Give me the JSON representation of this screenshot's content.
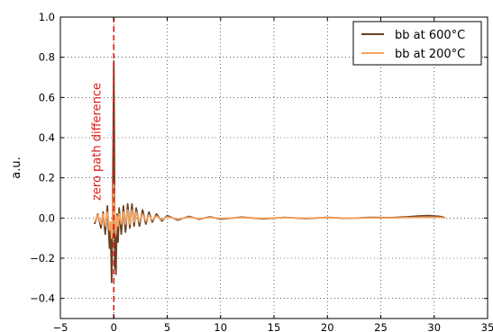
{
  "chart_data": {
    "type": "line",
    "title": "",
    "xlabel": "",
    "ylabel": "a.u.",
    "xlim": [
      -5,
      35
    ],
    "ylim": [
      -0.5,
      1.0
    ],
    "xticks": [
      -5,
      0,
      5,
      10,
      15,
      20,
      25,
      30,
      35
    ],
    "yticks": [
      -0.4,
      -0.2,
      0.0,
      0.2,
      0.4,
      0.6,
      0.8,
      1.0
    ],
    "xtick_labels": [
      "−5",
      "0",
      "5",
      "10",
      "15",
      "20",
      "25",
      "30",
      "35"
    ],
    "ytick_labels": [
      "−0.4",
      "−0.2",
      "0.0",
      "0.2",
      "0.4",
      "0.6",
      "0.8",
      "1.0"
    ],
    "grid": true,
    "legend_position": "top-right",
    "series": [
      {
        "name": "bb at 600°C",
        "color": "#6b4123",
        "x": [
          -1.8,
          -1.5,
          -1.2,
          -1.0,
          -0.8,
          -0.6,
          -0.4,
          -0.3,
          -0.2,
          -0.1,
          0.0,
          0.05,
          0.1,
          0.15,
          0.2,
          0.3,
          0.4,
          0.5,
          0.7,
          0.9,
          1.1,
          1.3,
          1.5,
          1.7,
          1.9,
          2.1,
          2.4,
          2.7,
          3.0,
          3.3,
          3.6,
          4.0,
          4.5,
          5.0,
          6.0,
          7.0,
          8.0,
          9.0,
          10.0,
          12.0,
          14.0,
          16.0,
          18.0,
          20.0,
          22.0,
          24.0,
          26.0,
          27.5,
          28.5,
          29.5,
          30.5,
          31.0
        ],
        "y": [
          -0.03,
          0.02,
          -0.05,
          0.03,
          -0.08,
          0.06,
          -0.15,
          -0.05,
          -0.32,
          0.05,
          0.78,
          0.4,
          -0.25,
          -0.1,
          -0.28,
          0.02,
          -0.12,
          0.05,
          -0.08,
          0.06,
          -0.07,
          0.07,
          -0.05,
          0.07,
          -0.04,
          0.05,
          -0.04,
          0.04,
          -0.03,
          0.03,
          -0.02,
          0.02,
          -0.015,
          0.012,
          -0.01,
          0.008,
          -0.006,
          0.006,
          -0.005,
          0.004,
          -0.004,
          0.003,
          -0.003,
          0.003,
          -0.002,
          0.003,
          0.002,
          0.006,
          0.01,
          0.012,
          0.008,
          0.002
        ]
      },
      {
        "name": "bb at 200°C",
        "color": "#f5a25d",
        "x": [
          -1.8,
          -1.5,
          -1.2,
          -1.0,
          -0.8,
          -0.6,
          -0.4,
          -0.3,
          -0.2,
          -0.1,
          0.0,
          0.05,
          0.1,
          0.15,
          0.2,
          0.3,
          0.4,
          0.5,
          0.7,
          0.9,
          1.1,
          1.3,
          1.5,
          1.7,
          1.9,
          2.1,
          2.4,
          2.7,
          3.0,
          3.3,
          3.6,
          4.0,
          4.5,
          5.0,
          6.0,
          7.0,
          8.0,
          9.0,
          10.0,
          12.0,
          14.0,
          16.0,
          18.0,
          20.0,
          22.0,
          24.0,
          26.0,
          27.5,
          28.5,
          29.5,
          30.5,
          31.0
        ],
        "y": [
          -0.02,
          0.015,
          -0.03,
          0.02,
          -0.04,
          0.03,
          -0.06,
          -0.02,
          -0.1,
          0.03,
          0.18,
          0.1,
          -0.06,
          -0.02,
          -0.08,
          0.01,
          -0.04,
          0.02,
          -0.03,
          0.03,
          -0.03,
          0.04,
          -0.03,
          0.04,
          -0.02,
          0.03,
          -0.02,
          0.02,
          -0.015,
          0.015,
          -0.01,
          0.01,
          -0.008,
          0.006,
          -0.005,
          0.004,
          -0.003,
          0.003,
          -0.002,
          0.002,
          -0.002,
          0.002,
          -0.001,
          0.002,
          -0.001,
          0.001,
          0.001,
          0.002,
          0.003,
          0.004,
          0.003,
          0.001
        ]
      }
    ],
    "annotations": [
      {
        "type": "vline",
        "x": 0,
        "color": "#e0191a",
        "style": "dashed"
      },
      {
        "type": "text",
        "text": "zero path difference",
        "x": -0.4,
        "y": 0.0,
        "rotation": -90,
        "color": "#e0191a"
      }
    ]
  }
}
